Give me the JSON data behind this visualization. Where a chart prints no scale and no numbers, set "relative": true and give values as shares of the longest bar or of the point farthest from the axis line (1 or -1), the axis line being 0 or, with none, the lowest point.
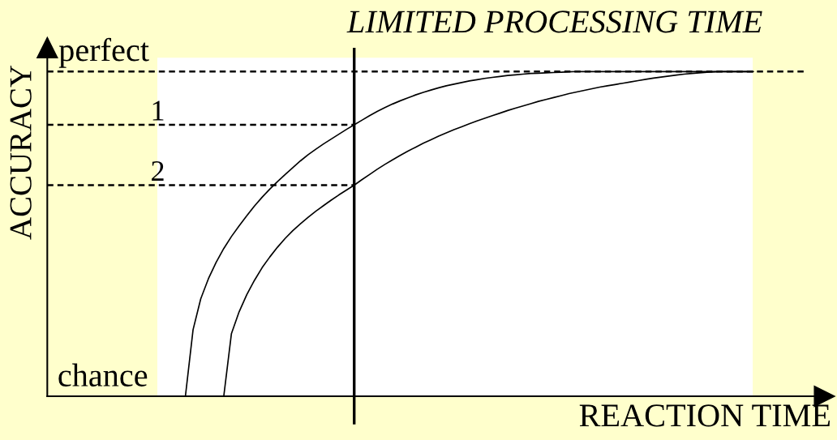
{
  "chart_data": {
    "type": "line",
    "relative": true,
    "xlabel": "REACTION TIME",
    "ylabel": "ACCURACY",
    "categories": [
      null,
      null,
      null,
      null,
      null,
      null,
      null,
      null,
      null,
      null,
      null,
      null,
      null,
      null,
      null,
      null,
      null,
      null,
      null,
      null,
      null,
      null,
      null,
      null,
      null,
      null,
      null,
      null,
      null,
      null,
      null,
      null,
      null,
      null,
      null,
      null,
      null,
      null,
      null,
      null,
      null,
      null,
      null,
      null,
      null,
      null,
      null,
      null,
      null,
      null,
      null,
      null,
      null,
      null,
      null,
      null,
      null,
      null,
      null,
      null,
      null,
      null,
      null,
      null,
      null,
      null,
      null,
      null,
      null,
      null,
      null,
      null,
      null,
      null,
      null,
      null,
      null,
      null,
      null,
      null,
      null,
      null,
      null,
      null,
      null,
      null,
      null,
      null,
      null,
      null,
      null,
      null,
      null,
      null,
      null,
      null,
      null,
      null,
      null,
      null
    ],
    "series": [
      {
        "color": "#000000",
        "values": [
          null,
          null,
          null,
          null,
          null,
          null,
          null,
          null,
          null,
          null,
          null,
          null,
          null,
          null,
          null,
          null,
          null,
          null,
          0,
          0.205,
          0.3,
          0.362,
          0.412,
          0.455,
          0.492,
          0.525,
          0.556,
          0.586,
          0.613,
          0.638,
          0.661,
          0.683,
          0.704,
          0.725,
          0.744,
          0.761,
          0.777,
          0.792,
          0.807,
          0.822,
          0.836,
          0.85,
          0.864,
          0.877,
          0.889,
          0.9,
          0.91,
          0.919,
          0.928,
          0.936,
          0.943,
          0.95,
          0.956,
          0.961,
          0.966,
          0.971,
          0.975,
          0.979,
          0.982,
          0.985,
          0.988,
          0.99,
          0.992,
          0.994,
          0.995,
          0.996,
          0.997,
          0.998,
          0.999,
          1,
          1,
          1,
          1,
          1,
          1,
          1,
          1,
          1,
          1,
          1,
          1,
          1,
          1,
          1,
          1,
          1,
          1,
          1,
          1,
          1,
          1,
          1,
          1,
          null,
          null,
          null,
          null,
          null,
          null,
          null
        ]
      },
      {
        "color": "#000000",
        "values": [
          null,
          null,
          null,
          null,
          null,
          null,
          null,
          null,
          null,
          null,
          null,
          null,
          null,
          null,
          null,
          null,
          null,
          null,
          null,
          null,
          null,
          null,
          null,
          0,
          0.193,
          0.26,
          0.313,
          0.357,
          0.396,
          0.429,
          0.459,
          0.486,
          0.51,
          0.531,
          0.551,
          0.57,
          0.587,
          0.604,
          0.62,
          0.635,
          0.65,
          0.667,
          0.683,
          0.699,
          0.714,
          0.728,
          0.742,
          0.755,
          0.767,
          0.779,
          0.79,
          0.801,
          0.811,
          0.821,
          0.83,
          0.839,
          0.848,
          0.856,
          0.864,
          0.872,
          0.88,
          0.887,
          0.894,
          0.901,
          0.908,
          0.914,
          0.92,
          0.926,
          0.932,
          0.937,
          0.942,
          0.947,
          0.952,
          0.956,
          0.96,
          0.964,
          0.968,
          0.972,
          0.976,
          0.98,
          0.983,
          0.986,
          0.989,
          0.992,
          0.994,
          0.996,
          0.998,
          0.999,
          1,
          1,
          1,
          1,
          1,
          null,
          null,
          null,
          null,
          null,
          null,
          null
        ]
      },
      {
        "name": "1",
        "color": "#000000",
        "line_style": "dashed",
        "values": [
          0.836,
          0.836,
          0.836,
          0.836,
          0.836,
          0.836,
          0.836,
          0.836,
          0.836,
          0.836,
          0.836,
          0.836,
          0.836,
          0.836,
          0.836,
          0.836,
          0.836,
          0.836,
          0.836,
          0.836,
          0.836,
          0.836,
          0.836,
          0.836,
          0.836,
          0.836,
          0.836,
          0.836,
          0.836,
          0.836,
          0.836,
          0.836,
          0.836,
          0.836,
          0.836,
          0.836,
          0.836,
          0.836,
          0.836,
          0.836,
          0.836,
          null,
          null,
          null,
          null,
          null,
          null,
          null,
          null,
          null,
          null,
          null,
          null,
          null,
          null,
          null,
          null,
          null,
          null,
          null,
          null,
          null,
          null,
          null,
          null,
          null,
          null,
          null,
          null,
          null,
          null,
          null,
          null,
          null,
          null,
          null,
          null,
          null,
          null,
          null,
          null,
          null,
          null,
          null,
          null,
          null,
          null,
          null,
          null,
          null,
          null,
          null,
          null,
          null,
          null,
          null,
          null,
          null,
          null,
          null
        ]
      },
      {
        "name": "2",
        "color": "#000000",
        "line_style": "dashed",
        "values": [
          0.65,
          0.65,
          0.65,
          0.65,
          0.65,
          0.65,
          0.65,
          0.65,
          0.65,
          0.65,
          0.65,
          0.65,
          0.65,
          0.65,
          0.65,
          0.65,
          0.65,
          0.65,
          0.65,
          0.65,
          0.65,
          0.65,
          0.65,
          0.65,
          0.65,
          0.65,
          0.65,
          0.65,
          0.65,
          0.65,
          0.65,
          0.65,
          0.65,
          0.65,
          0.65,
          0.65,
          0.65,
          0.65,
          0.65,
          0.65,
          0.65,
          null,
          null,
          null,
          null,
          null,
          null,
          null,
          null,
          null,
          null,
          null,
          null,
          null,
          null,
          null,
          null,
          null,
          null,
          null,
          null,
          null,
          null,
          null,
          null,
          null,
          null,
          null,
          null,
          null,
          null,
          null,
          null,
          null,
          null,
          null,
          null,
          null,
          null,
          null,
          null,
          null,
          null,
          null,
          null,
          null,
          null,
          null,
          null,
          null,
          null,
          null,
          null,
          null,
          null,
          null,
          null,
          null,
          null,
          null
        ]
      }
    ],
    "ref_lines": [
      {
        "axis": "y",
        "value": 1,
        "color": "#000000",
        "line_style": "dashed"
      }
    ],
    "annotations": [
      "LIMITED PROCESSING TIME",
      {
        "text": "perfect",
        "y": 1
      },
      "chance"
    ]
  }
}
